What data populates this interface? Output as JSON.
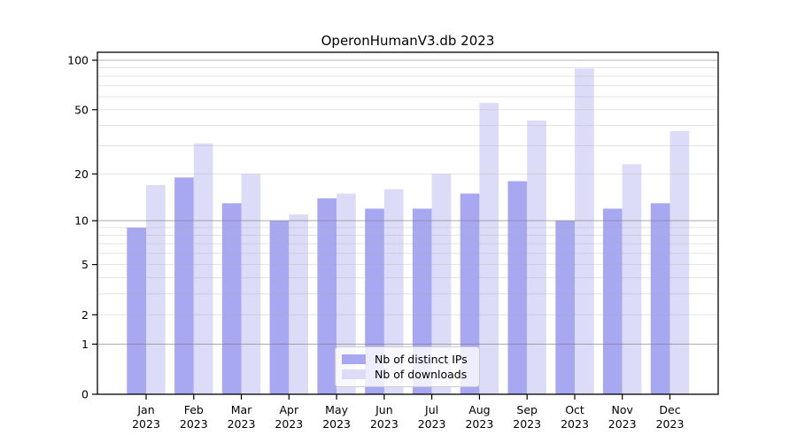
{
  "chart_data": {
    "type": "bar",
    "title": "OperonHumanV3.db 2023",
    "yscale": "log1p",
    "grid": true,
    "legend_position": "lower center",
    "categories": [
      "Jan",
      "Feb",
      "Mar",
      "Apr",
      "May",
      "Jun",
      "Jul",
      "Aug",
      "Sep",
      "Oct",
      "Nov",
      "Dec"
    ],
    "x_year_label": "2023",
    "series": [
      {
        "name": "Nb of distinct IPs",
        "color": "#a7a7f2",
        "values": [
          9,
          19,
          13,
          10,
          14,
          12,
          12,
          15,
          18,
          10,
          12,
          13
        ]
      },
      {
        "name": "Nb of downloads",
        "color": "#dcdcf8",
        "values": [
          17,
          31,
          20,
          11,
          15,
          16,
          20,
          55,
          43,
          89,
          23,
          37
        ]
      }
    ],
    "yticks": [
      0,
      1,
      2,
      5,
      10,
      20,
      50,
      100
    ],
    "ylim": [
      0,
      112
    ]
  },
  "colors": {
    "distinct_ips": "#a7a7f2",
    "downloads": "#dcdcf8",
    "major_grid": "rgba(128,128,128,0.6)",
    "minor_grid": "rgba(176,176,176,0.35)",
    "spine": "#000000"
  }
}
